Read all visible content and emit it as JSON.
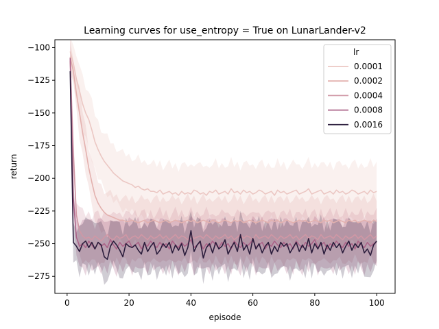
{
  "chart_data": {
    "type": "line",
    "title": "Learning curves for use_entropy = True on LunarLander-v2",
    "xlabel": "episode",
    "ylabel": "return",
    "xlim": [
      -3.95,
      105.95
    ],
    "ylim": [
      -288,
      -94
    ],
    "xticks": [
      0,
      20,
      40,
      60,
      80,
      100
    ],
    "yticks": [
      -275,
      -250,
      -225,
      -200,
      -175,
      -150,
      -125,
      -100
    ],
    "grid": false,
    "legend": {
      "title": "lr",
      "position": "top-right"
    },
    "x": [
      1,
      2,
      3,
      4,
      5,
      6,
      7,
      8,
      9,
      10,
      11,
      12,
      13,
      14,
      15,
      16,
      17,
      18,
      19,
      20,
      21,
      22,
      23,
      24,
      25,
      26,
      27,
      28,
      29,
      30,
      31,
      32,
      33,
      34,
      35,
      36,
      37,
      38,
      39,
      40,
      41,
      42,
      43,
      44,
      45,
      46,
      47,
      48,
      49,
      50,
      51,
      52,
      53,
      54,
      55,
      56,
      57,
      58,
      59,
      60,
      61,
      62,
      63,
      64,
      65,
      66,
      67,
      68,
      69,
      70,
      71,
      72,
      73,
      74,
      75,
      76,
      77,
      78,
      79,
      80,
      81,
      82,
      83,
      84,
      85,
      86,
      87,
      88,
      89,
      90,
      91,
      92,
      93,
      94,
      95,
      96,
      97,
      98,
      99,
      100
    ],
    "series": [
      {
        "name": "0.0001",
        "color": "#ebc7c3",
        "band": 18,
        "values": [
          -103,
          -112,
          -124,
          -133,
          -143,
          -150,
          -155,
          -163,
          -172,
          -178,
          -183,
          -187,
          -190,
          -193,
          -196,
          -198,
          -200,
          -202,
          -203,
          -204,
          -205,
          -207,
          -206,
          -208,
          -209,
          -208,
          -210,
          -210,
          -211,
          -209,
          -212,
          -211,
          -210,
          -212,
          -211,
          -213,
          -210,
          -212,
          -211,
          -212,
          -209,
          -210,
          -212,
          -211,
          -213,
          -210,
          -211,
          -209,
          -212,
          -211,
          -210,
          -212,
          -208,
          -211,
          -210,
          -212,
          -209,
          -211,
          -210,
          -212,
          -211,
          -209,
          -210,
          -212,
          -211,
          -210,
          -213,
          -209,
          -211,
          -210,
          -212,
          -211,
          -210,
          -209,
          -212,
          -211,
          -210,
          -208,
          -212,
          -211,
          -210,
          -209,
          -212,
          -211,
          -210,
          -212,
          -209,
          -211,
          -210,
          -212,
          -211,
          -209,
          -210,
          -212,
          -211,
          -210,
          -212,
          -209,
          -211,
          -210
        ]
      },
      {
        "name": "0.0002",
        "color": "#e3b1ae",
        "band": 14,
        "values": [
          -107,
          -118,
          -135,
          -150,
          -165,
          -178,
          -192,
          -203,
          -213,
          -219,
          -223,
          -226,
          -228,
          -229,
          -230,
          -231,
          -232,
          -232,
          -233,
          -233,
          -232,
          -233,
          -234,
          -233,
          -232,
          -234,
          -233,
          -232,
          -233,
          -234,
          -233,
          -232,
          -234,
          -233,
          -232,
          -233,
          -234,
          -233,
          -232,
          -233,
          -232,
          -234,
          -233,
          -232,
          -233,
          -234,
          -232,
          -233,
          -234,
          -233,
          -232,
          -233,
          -234,
          -232,
          -233,
          -232,
          -234,
          -233,
          -232,
          -233,
          -234,
          -233,
          -232,
          -233,
          -234,
          -232,
          -233,
          -232,
          -234,
          -233,
          -232,
          -233,
          -234,
          -233,
          -232,
          -233,
          -232,
          -234,
          -233,
          -232,
          -233,
          -234,
          -232,
          -233,
          -232,
          -234,
          -233,
          -232,
          -233,
          -234,
          -232,
          -233,
          -232,
          -234,
          -233,
          -232,
          -233,
          -234,
          -232,
          -233
        ]
      },
      {
        "name": "0.0004",
        "color": "#d097a5",
        "band": 15,
        "values": [
          -110,
          -180,
          -228,
          -240,
          -244,
          -246,
          -245,
          -247,
          -244,
          -246,
          -248,
          -245,
          -243,
          -246,
          -247,
          -244,
          -246,
          -245,
          -243,
          -247,
          -245,
          -244,
          -246,
          -243,
          -245,
          -247,
          -244,
          -246,
          -245,
          -243,
          -246,
          -244,
          -247,
          -245,
          -243,
          -246,
          -244,
          -245,
          -247,
          -243,
          -246,
          -245,
          -244,
          -246,
          -243,
          -245,
          -247,
          -244,
          -246,
          -245,
          -243,
          -246,
          -244,
          -247,
          -245,
          -243,
          -246,
          -244,
          -245,
          -247,
          -243,
          -246,
          -245,
          -244,
          -246,
          -243,
          -245,
          -247,
          -244,
          -246,
          -245,
          -243,
          -246,
          -244,
          -247,
          -245,
          -243,
          -246,
          -244,
          -245,
          -247,
          -243,
          -246,
          -245,
          -244,
          -246,
          -243,
          -245,
          -247,
          -244,
          -246,
          -245,
          -243,
          -246,
          -244,
          -247,
          -245,
          -243,
          -246,
          -244
        ]
      },
      {
        "name": "0.0008",
        "color": "#ab6388",
        "band": 15,
        "values": [
          -108,
          -215,
          -245,
          -252,
          -250,
          -253,
          -248,
          -251,
          -254,
          -249,
          -252,
          -250,
          -253,
          -247,
          -251,
          -254,
          -249,
          -252,
          -250,
          -248,
          -253,
          -251,
          -249,
          -254,
          -250,
          -252,
          -248,
          -251,
          -253,
          -249,
          -252,
          -250,
          -254,
          -248,
          -251,
          -253,
          -249,
          -252,
          -250,
          -247,
          -253,
          -251,
          -249,
          -254,
          -250,
          -252,
          -248,
          -251,
          -253,
          -249,
          -252,
          -250,
          -254,
          -248,
          -251,
          -253,
          -249,
          -252,
          -250,
          -247,
          -253,
          -251,
          -249,
          -254,
          -250,
          -252,
          -248,
          -251,
          -253,
          -249,
          -252,
          -250,
          -254,
          -248,
          -251,
          -253,
          -249,
          -252,
          -250,
          -247,
          -253,
          -251,
          -249,
          -254,
          -250,
          -252,
          -248,
          -251,
          -253,
          -249,
          -252,
          -250,
          -254,
          -248,
          -251,
          -253,
          -249,
          -252,
          -250,
          -249
        ]
      },
      {
        "name": "0.0016",
        "color": "#2b1d3c",
        "band": 15,
        "values": [
          -118,
          -249,
          -252,
          -256,
          -250,
          -248,
          -253,
          -249,
          -254,
          -249,
          -251,
          -260,
          -262,
          -252,
          -248,
          -251,
          -255,
          -260,
          -250,
          -252,
          -253,
          -251,
          -255,
          -258,
          -249,
          -256,
          -252,
          -249,
          -258,
          -255,
          -250,
          -253,
          -249,
          -257,
          -251,
          -255,
          -250,
          -259,
          -253,
          -240,
          -256,
          -251,
          -248,
          -261,
          -253,
          -250,
          -257,
          -249,
          -254,
          -252,
          -247,
          -258,
          -253,
          -249,
          -256,
          -243,
          -255,
          -251,
          -258,
          -246,
          -254,
          -250,
          -257,
          -252,
          -249,
          -258,
          -252,
          -256,
          -249,
          -252,
          -250,
          -257,
          -253,
          -249,
          -256,
          -251,
          -255,
          -246,
          -257,
          -250,
          -254,
          -249,
          -258,
          -251,
          -255,
          -249,
          -253,
          -250,
          -257,
          -252,
          -248,
          -255,
          -250,
          -253,
          -249,
          -257,
          -254,
          -259,
          -251,
          -248
        ]
      }
    ]
  }
}
